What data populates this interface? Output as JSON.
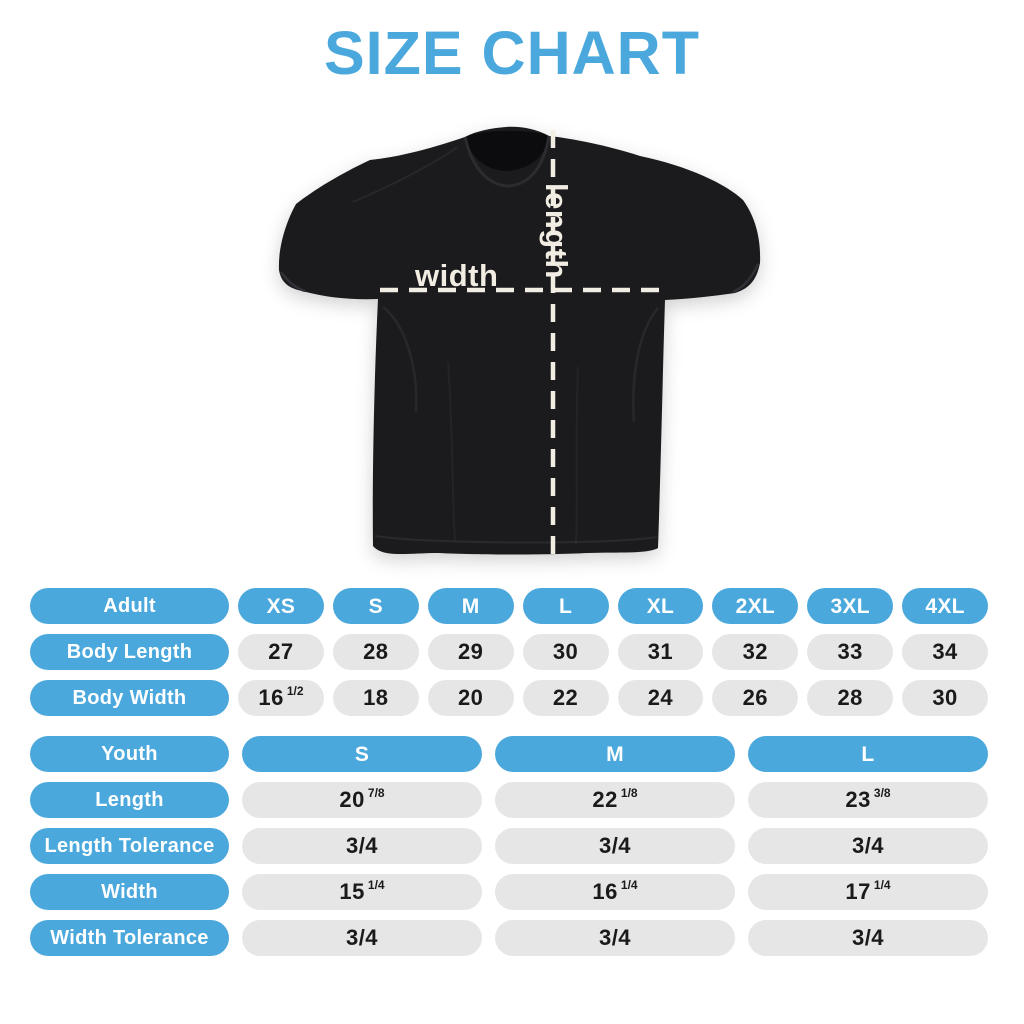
{
  "title": "SIZE CHART",
  "shirt": {
    "width_label": "width",
    "length_label": "length"
  },
  "colors": {
    "accent_blue": "#4BA8DC",
    "pill_gray": "#E6E6E6",
    "value_ink": "#1A1A1A",
    "measure_cream": "#F2EDE3",
    "shirt_black": "#1B1A1D"
  },
  "chart_data": [
    {
      "type": "table",
      "title": "Adult sizes",
      "columns": [
        "Adult",
        "XS",
        "S",
        "M",
        "L",
        "XL",
        "2XL",
        "3XL",
        "4XL"
      ],
      "rows": [
        [
          "Body Length",
          "27",
          "28",
          "29",
          "30",
          "31",
          "32",
          "33",
          "34"
        ],
        [
          "Body Width",
          "16 1/2",
          "18",
          "20",
          "22",
          "24",
          "26",
          "28",
          "30"
        ]
      ]
    },
    {
      "type": "table",
      "title": "Youth sizes",
      "columns": [
        "Youth",
        "S",
        "M",
        "L"
      ],
      "rows": [
        [
          "Length",
          "20 7/8",
          "22 1/8",
          "23 3/8"
        ],
        [
          "Length Tolerance",
          "3/4",
          "3/4",
          "3/4"
        ],
        [
          "Width",
          "15 1/4",
          "16 1/4",
          "17 1/4"
        ],
        [
          "Width Tolerance",
          "3/4",
          "3/4",
          "3/4"
        ]
      ]
    }
  ]
}
